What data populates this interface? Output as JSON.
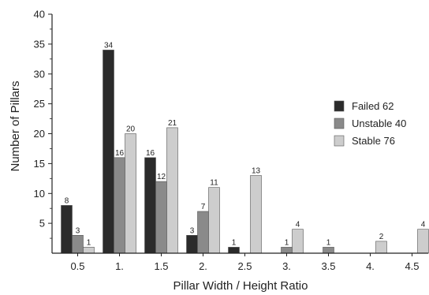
{
  "chart_data": {
    "type": "bar",
    "categories": [
      "0.5",
      "1.",
      "1.5",
      "2.",
      "2.5",
      "3.",
      "3.5",
      "4.",
      "4.5"
    ],
    "series": [
      {
        "name": "Failed 62",
        "values": [
          8,
          34,
          16,
          3,
          1,
          0,
          0,
          0,
          0
        ],
        "color": "#2b2b2b"
      },
      {
        "name": "Unstable 40",
        "values": [
          3,
          16,
          12,
          7,
          0,
          1,
          1,
          0,
          0
        ],
        "color": "#8a8a8a"
      },
      {
        "name": "Stable 76",
        "values": [
          1,
          20,
          21,
          11,
          13,
          4,
          0,
          2,
          4
        ],
        "color": "#cdcdcd"
      }
    ],
    "labels": [
      [
        "8",
        "34",
        "16",
        "3",
        "1",
        "",
        "",
        "",
        ""
      ],
      [
        "3",
        "16",
        "12",
        "7",
        "",
        "1",
        "1",
        "",
        ""
      ],
      [
        "1",
        "20",
        "21",
        "11",
        "13",
        "4",
        "",
        "2",
        "4"
      ]
    ],
    "xlabel": "Pillar Width / Height Ratio",
    "ylabel": "Number of Pillars",
    "ylim": [
      0,
      40
    ],
    "yticks": [
      "5",
      "10",
      "15",
      "20",
      "25",
      "30",
      "35",
      "40"
    ],
    "legend_position": "right",
    "grid": false
  }
}
